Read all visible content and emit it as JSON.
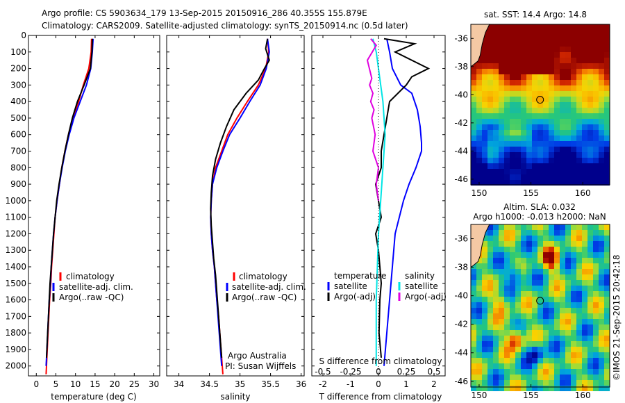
{
  "header": {
    "line1": "Argo profile: CS 5903634_179 13-Sep-2015 20150916_286 40.355S 155.879E",
    "line2": "Climatology: CARS2009. Satellite-adjusted climatology: synTS_20150914.nc (0.5d later)"
  },
  "side_stamp": "©IMOS 21-Sep-2015 20:42:18",
  "chart_data": [
    {
      "type": "line",
      "panel": "temperature",
      "xlabel": "temperature (deg C)",
      "ylabel": "",
      "xlim": [
        -2,
        31.5
      ],
      "ylim": [
        2060,
        0
      ],
      "y_reversed": true,
      "xticks": [
        0,
        5,
        10,
        15,
        20,
        25,
        30
      ],
      "yticks": [
        0,
        100,
        200,
        300,
        400,
        500,
        600,
        700,
        800,
        900,
        1000,
        1100,
        1200,
        1300,
        1400,
        1500,
        1600,
        1700,
        1800,
        1900,
        2000
      ],
      "legend": {
        "placement": "lower-left",
        "entries": [
          "climatology",
          "satellite-adj. clim.",
          "Argo(..raw -QC)"
        ]
      },
      "series": [
        {
          "name": "climatology",
          "color": "#ff0000",
          "points": [
            [
              14.1,
              20
            ],
            [
              14.0,
              100
            ],
            [
              13.4,
              200
            ],
            [
              12.0,
              300
            ],
            [
              10.8,
              400
            ],
            [
              9.3,
              500
            ],
            [
              8.2,
              600
            ],
            [
              7.3,
              700
            ],
            [
              6.5,
              800
            ],
            [
              5.9,
              900
            ],
            [
              5.3,
              1000
            ],
            [
              4.8,
              1100
            ],
            [
              4.5,
              1200
            ],
            [
              4.2,
              1300
            ],
            [
              3.9,
              1400
            ],
            [
              3.7,
              1500
            ],
            [
              3.4,
              1600
            ],
            [
              3.2,
              1700
            ],
            [
              3.0,
              1800
            ],
            [
              2.8,
              1900
            ],
            [
              2.6,
              2000
            ],
            [
              2.5,
              2050
            ]
          ]
        },
        {
          "name": "satellite-adj. clim.",
          "color": "#0000ff",
          "points": [
            [
              14.5,
              20
            ],
            [
              14.3,
              100
            ],
            [
              13.9,
              200
            ],
            [
              12.8,
              300
            ],
            [
              11.2,
              400
            ],
            [
              9.6,
              500
            ],
            [
              8.4,
              600
            ],
            [
              7.4,
              700
            ],
            [
              6.6,
              800
            ],
            [
              5.9,
              900
            ],
            [
              5.3,
              1000
            ],
            [
              4.8,
              1100
            ],
            [
              4.4,
              1200
            ],
            [
              4.1,
              1300
            ],
            [
              3.8,
              1400
            ],
            [
              3.6,
              1500
            ],
            [
              3.3,
              1600
            ],
            [
              3.1,
              1700
            ],
            [
              2.9,
              1800
            ],
            [
              2.7,
              1900
            ],
            [
              2.5,
              2000
            ]
          ]
        },
        {
          "name": "Argo(..raw -QC)",
          "color": "#000000",
          "points": [
            [
              14.3,
              20
            ],
            [
              14.2,
              100
            ],
            [
              13.8,
              200
            ],
            [
              13.0,
              250
            ],
            [
              12.2,
              300
            ],
            [
              10.5,
              400
            ],
            [
              9.2,
              500
            ],
            [
              8.2,
              600
            ],
            [
              7.3,
              700
            ],
            [
              6.5,
              800
            ],
            [
              5.8,
              900
            ],
            [
              5.2,
              1000
            ],
            [
              4.8,
              1100
            ],
            [
              4.4,
              1200
            ],
            [
              4.1,
              1300
            ],
            [
              3.8,
              1400
            ],
            [
              3.5,
              1500
            ],
            [
              3.3,
              1600
            ],
            [
              3.1,
              1700
            ],
            [
              2.9,
              1800
            ],
            [
              2.7,
              1900
            ],
            [
              2.6,
              1950
            ]
          ]
        }
      ]
    },
    {
      "type": "line",
      "panel": "salinity",
      "xlabel": "salinity",
      "ylabel": "",
      "xlim": [
        33.8,
        36.05
      ],
      "ylim": [
        2060,
        0
      ],
      "y_reversed": true,
      "xticks": [
        34,
        34.5,
        35,
        35.5,
        36
      ],
      "xticklabels": [
        "34",
        "34.5",
        "35",
        "35.5",
        "36"
      ],
      "legend": {
        "placement": "lower-left",
        "entries": [
          "climatology",
          "satellite-adj. clim.",
          "Argo(..raw -QC)"
        ]
      },
      "annotation": [
        "Argo Australia",
        "PI: Susan Wijffels"
      ],
      "series": [
        {
          "name": "climatology",
          "color": "#ff0000",
          "points": [
            [
              35.45,
              20
            ],
            [
              35.47,
              100
            ],
            [
              35.42,
              200
            ],
            [
              35.3,
              300
            ],
            [
              35.12,
              400
            ],
            [
              34.95,
              500
            ],
            [
              34.8,
              600
            ],
            [
              34.7,
              700
            ],
            [
              34.6,
              800
            ],
            [
              34.55,
              900
            ],
            [
              34.53,
              1000
            ],
            [
              34.52,
              1100
            ],
            [
              34.53,
              1200
            ],
            [
              34.55,
              1300
            ],
            [
              34.58,
              1400
            ],
            [
              34.6,
              1500
            ],
            [
              34.62,
              1600
            ],
            [
              34.65,
              1700
            ],
            [
              34.67,
              1800
            ],
            [
              34.69,
              1900
            ],
            [
              34.71,
              2000
            ],
            [
              34.72,
              2050
            ]
          ]
        },
        {
          "name": "satellite-adj. clim.",
          "color": "#0000ff",
          "points": [
            [
              35.45,
              20
            ],
            [
              35.48,
              100
            ],
            [
              35.43,
              200
            ],
            [
              35.33,
              300
            ],
            [
              35.16,
              400
            ],
            [
              35.0,
              500
            ],
            [
              34.83,
              600
            ],
            [
              34.72,
              700
            ],
            [
              34.62,
              800
            ],
            [
              34.55,
              900
            ],
            [
              34.53,
              1000
            ],
            [
              34.52,
              1100
            ],
            [
              34.53,
              1200
            ],
            [
              34.55,
              1300
            ],
            [
              34.58,
              1400
            ],
            [
              34.6,
              1500
            ],
            [
              34.62,
              1600
            ],
            [
              34.64,
              1700
            ],
            [
              34.66,
              1800
            ],
            [
              34.68,
              1900
            ],
            [
              34.7,
              2000
            ]
          ]
        },
        {
          "name": "Argo(..raw -QC)",
          "color": "#000000",
          "points": [
            [
              35.45,
              20
            ],
            [
              35.42,
              80
            ],
            [
              35.48,
              150
            ],
            [
              35.4,
              200
            ],
            [
              35.3,
              270
            ],
            [
              35.1,
              350
            ],
            [
              34.9,
              450
            ],
            [
              34.78,
              550
            ],
            [
              34.68,
              650
            ],
            [
              34.6,
              750
            ],
            [
              34.55,
              850
            ],
            [
              34.53,
              950
            ],
            [
              34.52,
              1050
            ],
            [
              34.53,
              1150
            ],
            [
              34.55,
              1250
            ],
            [
              34.57,
              1350
            ],
            [
              34.6,
              1450
            ],
            [
              34.62,
              1550
            ],
            [
              34.64,
              1650
            ],
            [
              34.66,
              1750
            ],
            [
              34.68,
              1850
            ],
            [
              34.7,
              1950
            ]
          ]
        }
      ]
    },
    {
      "type": "line",
      "panel": "difference",
      "xlabel": "T difference from climatology",
      "xlabel_top": "S difference from climatology",
      "xlim": [
        -2.4,
        2.4
      ],
      "ylim": [
        2060,
        0
      ],
      "y_reversed": true,
      "xticks": [
        -2,
        -1,
        0,
        1,
        2
      ],
      "xticklabels": [
        "-2",
        "-1",
        "0",
        "1",
        "2"
      ],
      "s_ticks": [
        -0.5,
        -0.25,
        0,
        0.25,
        0.5
      ],
      "s_ticklabels": [
        "-0.5",
        "-0.25",
        "0",
        "0.25",
        "0.5"
      ],
      "legend": {
        "placement": "lower-center",
        "temperature_title": "temperature",
        "salinity_title": "salinity",
        "entries": [
          "satellite",
          "Argo(-adj)",
          "satellite",
          "Argo(-adj)"
        ]
      },
      "series": [
        {
          "name": "satellite",
          "group": "temperature",
          "color": "#0000ff",
          "points": [
            [
              0.3,
              20
            ],
            [
              0.4,
              100
            ],
            [
              0.5,
              200
            ],
            [
              0.8,
              300
            ],
            [
              1.2,
              350
            ],
            [
              1.4,
              450
            ],
            [
              1.5,
              550
            ],
            [
              1.55,
              650
            ],
            [
              1.55,
              700
            ],
            [
              1.35,
              800
            ],
            [
              1.1,
              900
            ],
            [
              0.9,
              1000
            ],
            [
              0.75,
              1100
            ],
            [
              0.6,
              1200
            ],
            [
              0.5,
              1400
            ],
            [
              0.4,
              1600
            ],
            [
              0.3,
              1800
            ],
            [
              0.2,
              2000
            ]
          ]
        },
        {
          "name": "Argo(-adj)",
          "group": "temperature",
          "color": "#000000",
          "points": [
            [
              0.2,
              20
            ],
            [
              1.3,
              50
            ],
            [
              0.6,
              100
            ],
            [
              1.8,
              200
            ],
            [
              1.2,
              250
            ],
            [
              1.0,
              300
            ],
            [
              0.7,
              350
            ],
            [
              0.4,
              400
            ],
            [
              0.3,
              500
            ],
            [
              0.2,
              600
            ],
            [
              0.1,
              700
            ],
            [
              0.1,
              800
            ],
            [
              -0.1,
              900
            ],
            [
              0.0,
              1000
            ],
            [
              0.1,
              1100
            ],
            [
              -0.1,
              1200
            ],
            [
              0.0,
              1300
            ],
            [
              0.05,
              1400
            ],
            [
              0.1,
              1500
            ],
            [
              0.05,
              1600
            ],
            [
              0.02,
              1800
            ],
            [
              0.1,
              1950
            ]
          ]
        },
        {
          "name": "satellite",
          "group": "salinity",
          "color": "#00e5e5",
          "points": [
            [
              -0.05,
              20
            ],
            [
              -0.02,
              100
            ],
            [
              0.0,
              200
            ],
            [
              0.02,
              300
            ],
            [
              0.04,
              400
            ],
            [
              0.05,
              500
            ],
            [
              0.06,
              600
            ],
            [
              0.05,
              700
            ],
            [
              0.04,
              800
            ],
            [
              0.03,
              900
            ],
            [
              0.02,
              1000
            ],
            [
              0.01,
              1100
            ],
            [
              0.0,
              1200
            ],
            [
              -0.01,
              1400
            ],
            [
              -0.02,
              1600
            ],
            [
              -0.02,
              1800
            ],
            [
              -0.02,
              2000
            ]
          ]
        },
        {
          "name": "Argo(-adj)",
          "group": "salinity",
          "color": "#e000e0",
          "points": [
            [
              -0.07,
              20
            ],
            [
              -0.02,
              60
            ],
            [
              -0.1,
              150
            ],
            [
              -0.06,
              260
            ],
            [
              -0.08,
              300
            ],
            [
              -0.05,
              350
            ],
            [
              -0.07,
              400
            ],
            [
              -0.04,
              450
            ],
            [
              -0.06,
              500
            ],
            [
              -0.03,
              600
            ],
            [
              -0.05,
              700
            ],
            [
              0.0,
              800
            ],
            [
              -0.02,
              900
            ],
            [
              0.0,
              1000
            ]
          ]
        }
      ]
    },
    {
      "type": "heatmap",
      "panel": "sst-map",
      "title": "sat. SST: 14.4 Argo: 14.8",
      "xlim": [
        149.2,
        162.6
      ],
      "ylim": [
        -46.4,
        -35
      ],
      "xticks": [
        150,
        155,
        160
      ],
      "yticks": [
        -36,
        -38,
        -40,
        -42,
        -44,
        -46
      ],
      "argo_position": [
        155.879,
        -40.355
      ]
    },
    {
      "type": "heatmap",
      "panel": "sla-map",
      "title_line1": "Altim. SLA: 0.032",
      "title_line2": "Argo h1000: -0.013 h2000: NaN",
      "xlim": [
        149.2,
        162.6
      ],
      "ylim": [
        -46.4,
        -35
      ],
      "xticks": [
        150,
        155,
        160
      ],
      "yticks": [
        -36,
        -38,
        -40,
        -42,
        -44,
        -46
      ],
      "argo_position": [
        155.879,
        -40.355
      ]
    }
  ]
}
